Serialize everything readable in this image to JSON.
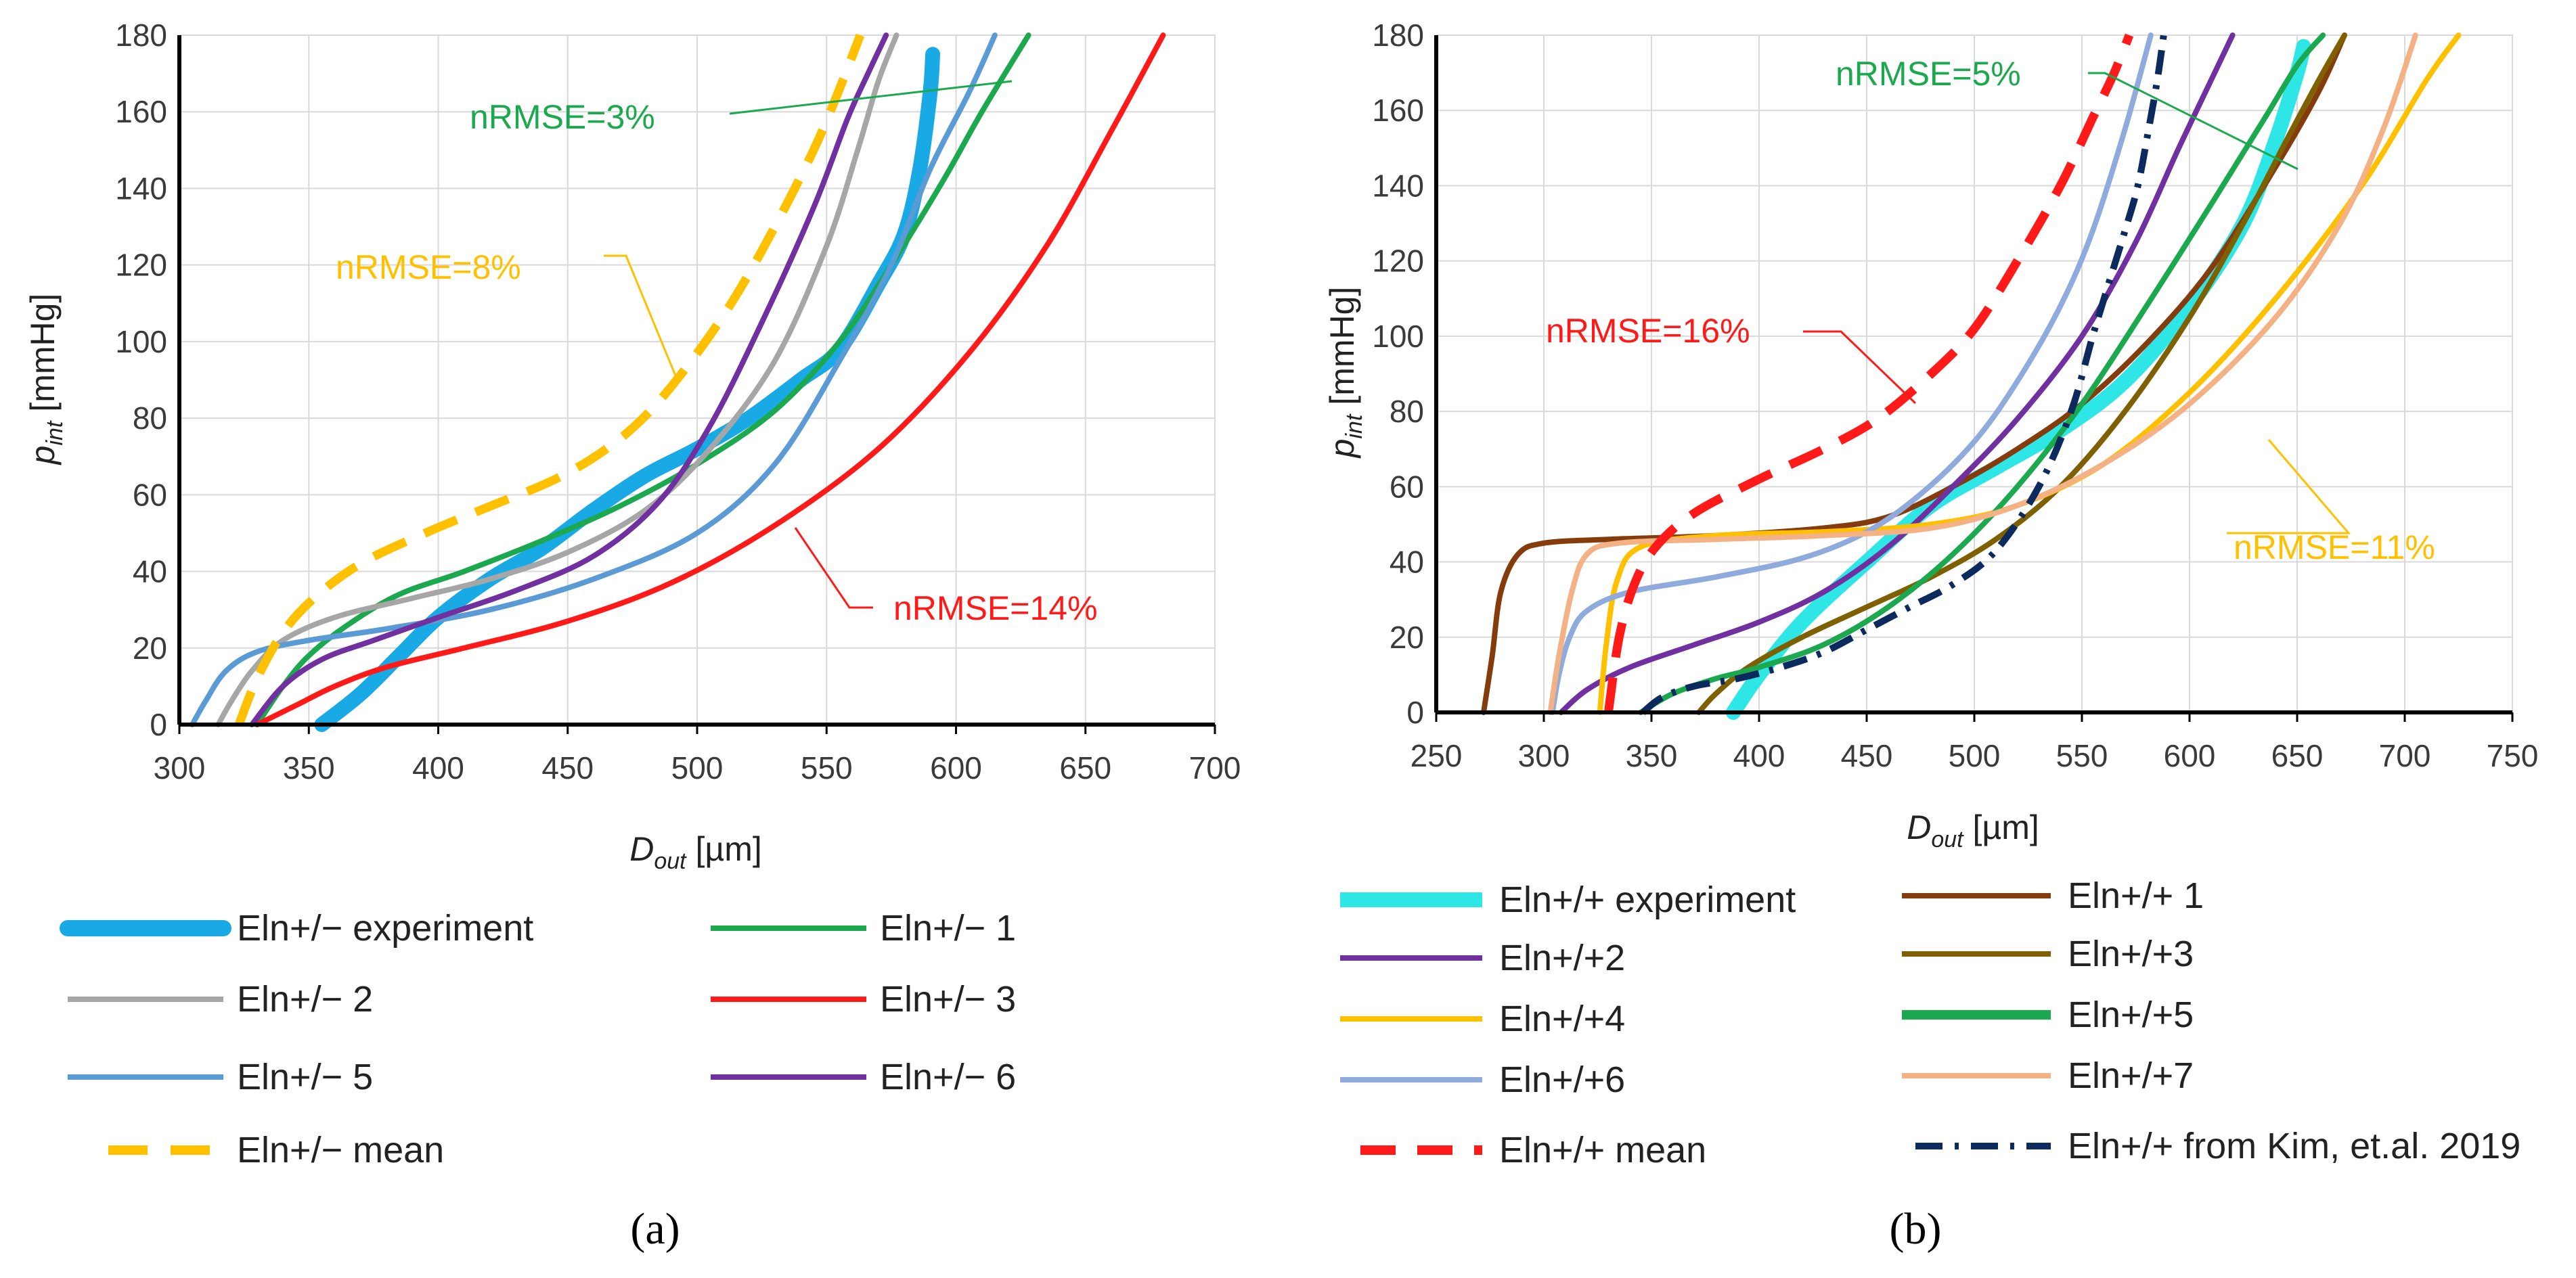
{
  "chart_data": [
    {
      "type": "line",
      "panel_label": "(a)",
      "xlabel": {
        "main": "D",
        "sub": "out",
        "unit": " [µm]"
      },
      "ylabel": {
        "main": "p",
        "sub": "int",
        "unit": " [mmHg]"
      },
      "xlim": [
        300,
        700
      ],
      "ylim": [
        0,
        180
      ],
      "xticks": [
        300,
        350,
        400,
        450,
        500,
        550,
        600,
        650,
        700
      ],
      "yticks": [
        0,
        20,
        40,
        60,
        80,
        100,
        120,
        140,
        160,
        180
      ],
      "grid": true,
      "legend_position": "bottom",
      "series": [
        {
          "name": "Eln+/− experiment",
          "color": "#19aae6",
          "style": "thick",
          "x": [
            355,
            370,
            385,
            400,
            420,
            440,
            460,
            480,
            500,
            520,
            540,
            555,
            570,
            580,
            586,
            590,
            591
          ],
          "y": [
            0,
            8,
            18,
            28,
            38,
            46,
            56,
            65,
            72,
            80,
            90,
            98,
            115,
            128,
            145,
            165,
            175
          ]
        },
        {
          "name": "Eln+/− 1",
          "color": "#1ba84f",
          "style": "solid",
          "x": [
            330,
            340,
            350,
            365,
            385,
            410,
            440,
            470,
            500,
            530,
            555,
            575,
            595,
            610,
            628
          ],
          "y": [
            0,
            10,
            18,
            26,
            34,
            40,
            48,
            57,
            68,
            82,
            100,
            120,
            142,
            160,
            180
          ]
        },
        {
          "name": "Eln+/− 2",
          "color": "#a6a6a6",
          "style": "solid",
          "x": [
            315,
            320,
            328,
            340,
            360,
            390,
            420,
            450,
            480,
            505,
            530,
            550,
            562,
            570,
            577
          ],
          "y": [
            0,
            6,
            14,
            22,
            28,
            33,
            38,
            45,
            56,
            72,
            95,
            125,
            150,
            168,
            180
          ]
        },
        {
          "name": "Eln+/− 3",
          "color": "#ff1a1a",
          "style": "solid",
          "x": [
            330,
            345,
            360,
            380,
            410,
            450,
            490,
            530,
            570,
            605,
            635,
            660,
            680
          ],
          "y": [
            0,
            5,
            10,
            15,
            20,
            27,
            37,
            52,
            72,
            97,
            125,
            155,
            180
          ]
        },
        {
          "name": "Eln+/− 5",
          "color": "#5b9bd5",
          "style": "solid",
          "x": [
            305,
            310,
            318,
            330,
            350,
            380,
            420,
            460,
            500,
            530,
            555,
            575,
            590,
            605,
            615
          ],
          "y": [
            0,
            6,
            14,
            19,
            22,
            25,
            30,
            38,
            50,
            68,
            95,
            120,
            145,
            165,
            180
          ]
        },
        {
          "name": "Eln+/− 6",
          "color": "#7030a0",
          "style": "solid",
          "x": [
            328,
            340,
            355,
            375,
            400,
            430,
            460,
            485,
            505,
            525,
            545,
            558,
            566,
            573
          ],
          "y": [
            0,
            10,
            17,
            22,
            28,
            35,
            44,
            58,
            78,
            105,
            135,
            158,
            170,
            180
          ]
        },
        {
          "name": "Eln+/− mean",
          "color": "#ffc000",
          "style": "dashed",
          "x": [
            323,
            330,
            340,
            352,
            370,
            395,
            420,
            445,
            465,
            482,
            500,
            515,
            530,
            545,
            555,
            563
          ],
          "y": [
            0,
            12,
            24,
            33,
            42,
            50,
            57,
            64,
            72,
            82,
            97,
            112,
            130,
            150,
            166,
            180
          ]
        }
      ],
      "annotations": [
        {
          "text": "nRMSE=3%",
          "color": "#1ba84f"
        },
        {
          "text": "nRMSE=8%",
          "color": "#ffc000"
        },
        {
          "text": "nRMSE=14%",
          "color": "#ff1a1a"
        }
      ]
    },
    {
      "type": "line",
      "panel_label": "(b)",
      "xlabel": {
        "main": "D",
        "sub": "out",
        "unit": " [µm]"
      },
      "ylabel": {
        "main": "p",
        "sub": "int",
        "unit": " [mmHg]"
      },
      "xlim": [
        250,
        750
      ],
      "ylim": [
        0,
        180
      ],
      "xticks": [
        250,
        300,
        350,
        400,
        450,
        500,
        550,
        600,
        650,
        700,
        750
      ],
      "yticks": [
        0,
        20,
        40,
        60,
        80,
        100,
        120,
        140,
        160,
        180
      ],
      "grid": true,
      "legend_position": "bottom",
      "series": [
        {
          "name": "Eln+/+ experiment",
          "color": "#2ee6e6",
          "style": "thick",
          "x": [
            388,
            400,
            420,
            450,
            480,
            510,
            540,
            570,
            600,
            625,
            640,
            650,
            653
          ],
          "y": [
            0,
            10,
            24,
            40,
            55,
            65,
            75,
            88,
            108,
            130,
            152,
            170,
            177
          ]
        },
        {
          "name": "Eln+/+ 1",
          "color": "#843c0c",
          "style": "solid",
          "x": [
            272,
            276,
            280,
            288,
            300,
            330,
            380,
            430,
            460,
            490,
            520,
            550,
            580,
            610,
            640,
            660,
            672
          ],
          "y": [
            0,
            15,
            32,
            42,
            45,
            46,
            47,
            49,
            52,
            60,
            70,
            82,
            98,
            118,
            145,
            165,
            180
          ]
        },
        {
          "name": "Eln+/+2",
          "color": "#7030a0",
          "style": "solid",
          "x": [
            308,
            320,
            340,
            370,
            400,
            430,
            460,
            490,
            520,
            550,
            575,
            595,
            610,
            620
          ],
          "y": [
            0,
            6,
            12,
            18,
            24,
            32,
            44,
            60,
            78,
            100,
            125,
            150,
            168,
            180
          ]
        },
        {
          "name": "Eln+/+3",
          "color": "#7f6000",
          "style": "solid",
          "x": [
            372,
            380,
            395,
            420,
            450,
            480,
            510,
            540,
            570,
            600,
            625,
            645,
            660,
            672
          ],
          "y": [
            0,
            5,
            12,
            20,
            28,
            36,
            46,
            60,
            80,
            105,
            130,
            152,
            168,
            180
          ]
        },
        {
          "name": "Eln+/+4",
          "color": "#ffc000",
          "style": "solid",
          "x": [
            326,
            329,
            334,
            345,
            380,
            430,
            480,
            520,
            560,
            600,
            640,
            680,
            710,
            725
          ],
          "y": [
            0,
            18,
            35,
            44,
            47,
            48,
            50,
            55,
            66,
            85,
            110,
            140,
            168,
            180
          ]
        },
        {
          "name": "Eln+/+5",
          "color": "#1ba84f",
          "style": "solid",
          "x": [
            345,
            360,
            380,
            400,
            430,
            460,
            490,
            520,
            550,
            580,
            610,
            635,
            650,
            662
          ],
          "y": [
            0,
            5,
            9,
            12,
            18,
            28,
            42,
            60,
            82,
            108,
            135,
            158,
            172,
            180
          ]
        },
        {
          "name": "Eln+/+6",
          "color": "#8faadc",
          "style": "solid",
          "x": [
            304,
            307,
            312,
            320,
            340,
            380,
            420,
            450,
            475,
            500,
            520,
            540,
            555,
            570,
            582
          ],
          "y": [
            0,
            10,
            20,
            27,
            32,
            36,
            41,
            48,
            58,
            72,
            88,
            108,
            128,
            155,
            180
          ]
        },
        {
          "name": "Eln+/+7",
          "color": "#f4b183",
          "style": "solid",
          "x": [
            303,
            307,
            313,
            320,
            335,
            380,
            430,
            480,
            520,
            560,
            600,
            640,
            670,
            690,
            705
          ],
          "y": [
            0,
            15,
            32,
            42,
            45,
            46,
            47,
            49,
            55,
            66,
            82,
            105,
            130,
            155,
            180
          ]
        },
        {
          "name": "Eln+/+ mean",
          "color": "#ff1a1a",
          "style": "dashed",
          "x": [
            330,
            335,
            342,
            352,
            370,
            400,
            430,
            455,
            480,
            500,
            520,
            540,
            555,
            565,
            572
          ],
          "y": [
            0,
            20,
            34,
            44,
            53,
            62,
            70,
            78,
            90,
            102,
            120,
            140,
            158,
            170,
            180
          ]
        },
        {
          "name": "Eln+/+ from Kim, et.al. 2019",
          "color": "#0b2a5e",
          "style": "dashdot",
          "x": [
            346,
            355,
            370,
            390,
            410,
            430,
            450,
            470,
            490,
            510,
            530,
            545,
            555,
            563,
            570,
            576,
            581,
            585,
            588
          ],
          "y": [
            0,
            4,
            7,
            9,
            12,
            16,
            22,
            28,
            34,
            43,
            60,
            80,
            100,
            115,
            128,
            140,
            155,
            168,
            180
          ]
        }
      ],
      "annotations": [
        {
          "text": "nRMSE=5%",
          "color": "#1ba84f"
        },
        {
          "text": "nRMSE=16%",
          "color": "#ff1a1a"
        },
        {
          "text": "nRMSE=11%",
          "color": "#ffc000"
        }
      ]
    }
  ]
}
